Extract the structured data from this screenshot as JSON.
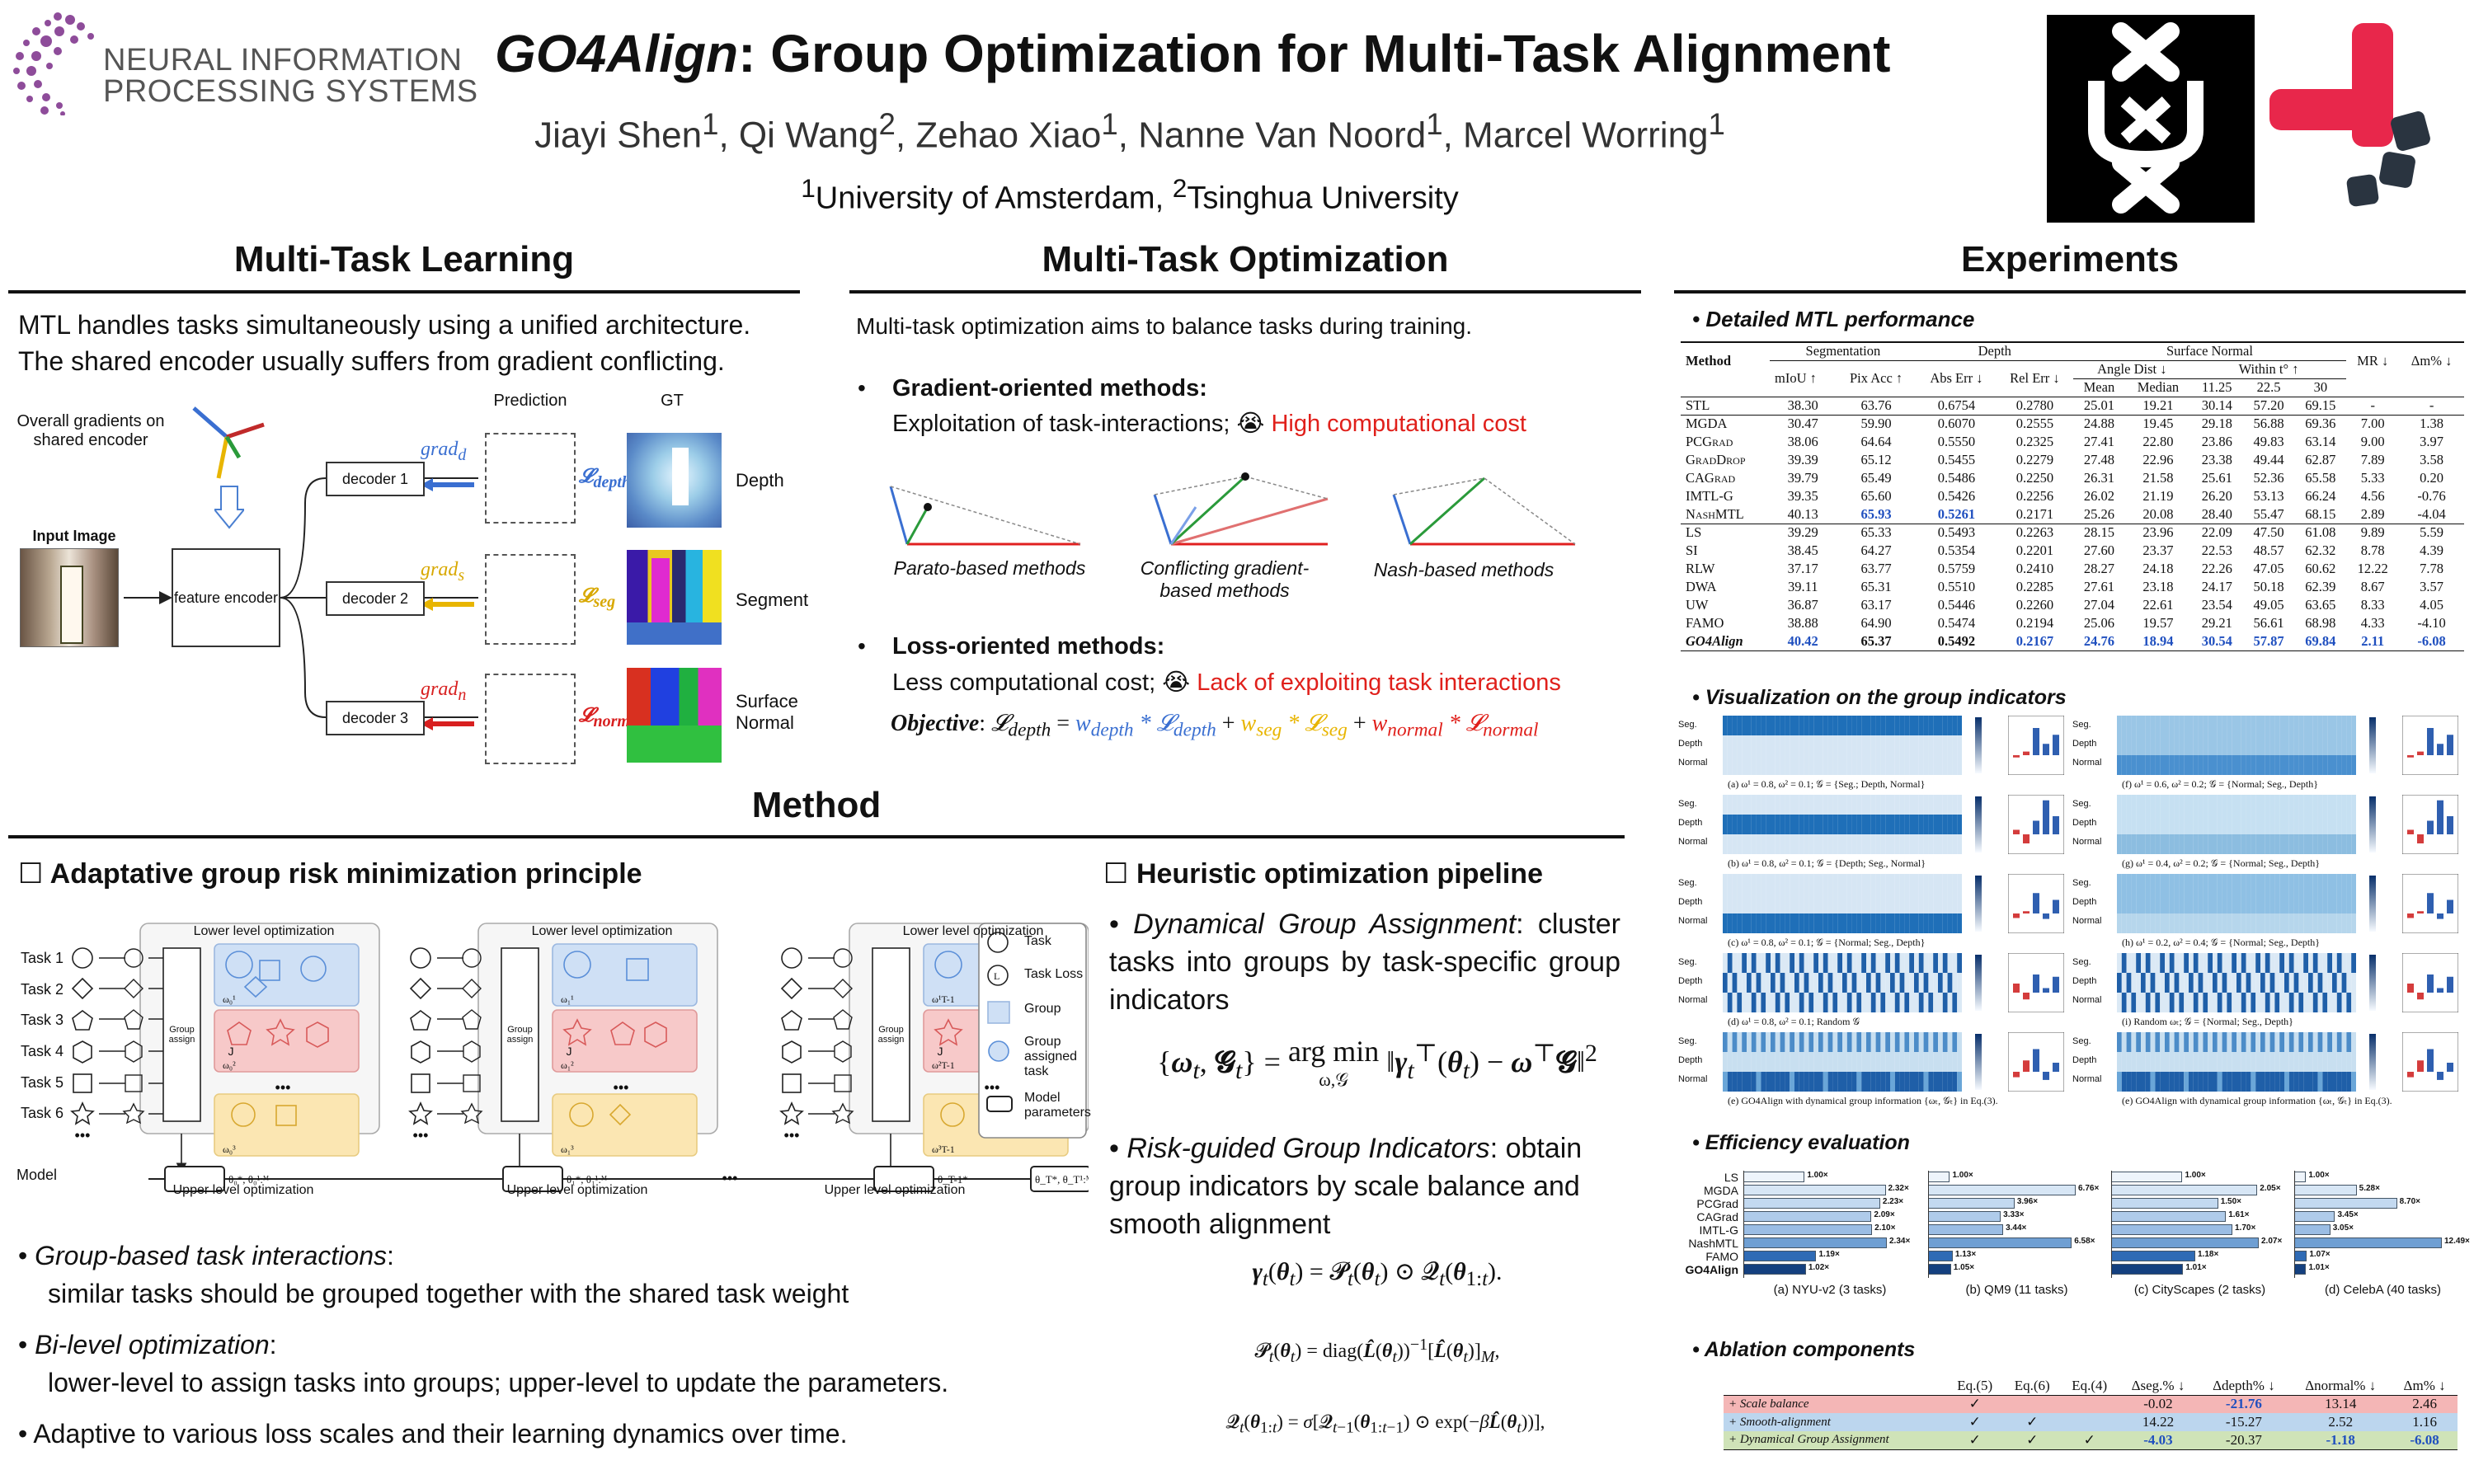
{
  "header": {
    "title_main": "GO4Align",
    "title_rest": ": Group Optimization for Multi-Task Alignment",
    "authors": [
      {
        "name": "Jiayi Shen",
        "aff": "1"
      },
      {
        "name": "Qi Wang",
        "aff": "2"
      },
      {
        "name": "Zehao Xiao",
        "aff": "1"
      },
      {
        "name": "Nanne Van Noord",
        "aff": "1"
      },
      {
        "name": "Marcel Worring",
        "aff": "1"
      }
    ],
    "affiliations": [
      "University of Amsterdam",
      "Tsinghua University"
    ],
    "conf_name_1": "NEURAL INFORMATION",
    "conf_name_2": "PROCESSING SYSTEMS"
  },
  "mtl": {
    "heading": "Multi-Task Learning",
    "text": "MTL handles tasks simultaneously using a unified architecture. The shared encoder usually suffers from gradient conflicting.",
    "overall_label": "Overall gradients on shared encoder",
    "input_label": "Input Image",
    "encoder_label": "feature encoder",
    "pred_label": "Prediction",
    "gt_label": "GT",
    "decoders": [
      "decoder 1",
      "decoder 2",
      "decoder 3"
    ],
    "grads": [
      "grad",
      "grad",
      "grad"
    ],
    "grad_subs": [
      "d",
      "s",
      "n"
    ],
    "losses": [
      "depth",
      "seg",
      "norm"
    ],
    "tasks": [
      "Depth",
      "Segment",
      "Surface Normal"
    ]
  },
  "mto": {
    "heading": "Multi-Task Optimization",
    "intro": "Multi-task optimization aims to balance tasks during training.",
    "grad_title": "Gradient-oriented methods:",
    "grad_desc": "Exploitation of task-interactions;",
    "grad_con": "High computational cost",
    "methods": [
      "Parato-based methods",
      "Conflicting gradient-based methods",
      "Nash-based methods"
    ],
    "loss_title": "Loss-oriented methods:",
    "loss_desc": "Less computational cost;",
    "loss_con": "Lack of exploiting task interactions",
    "objective_label": "Objective",
    "emoji": "😭"
  },
  "method": {
    "heading": "Method",
    "left_title": "Adaptative group risk minimization principle",
    "right_title": "Heuristic optimization pipeline",
    "lower_label": "Lower level optimization",
    "upper_label": "Upper level optimization",
    "group_assign": "Group assign",
    "model_label": "Model",
    "tasks": [
      "Task 1",
      "Task 2",
      "Task 3",
      "Task 4",
      "Task 5",
      "Task 6"
    ],
    "legend": [
      "Task",
      "Task Loss",
      "Group",
      "Group assigned task",
      "Model parameters"
    ],
    "bullets": [
      {
        "t": "Group-based task interactions",
        "d": "similar tasks should be grouped together with the shared task weight"
      },
      {
        "t": "Bi-level optimization",
        "d": "lower-level to assign tasks into groups; upper-level to update the parameters."
      },
      {
        "t": "",
        "d": "Adaptive to various loss scales and their learning dynamics over time."
      }
    ],
    "pipe1_t": "Dynamical Group Assignment",
    "pipe1_d": ": cluster tasks into groups by task-specific group indicators",
    "pipe2_t": "Risk-guided Group Indicators",
    "pipe2_d": ": obtain group indicators by scale balance and smooth alignment",
    "eq_argmin": "arg min",
    "eq_sub": "ω,𝒢"
  },
  "exp": {
    "heading": "Experiments",
    "s1": "Detailed MTL performance",
    "s2": "Visualization on the group indicators",
    "s3": "Efficiency evaluation",
    "s4": "Ablation components",
    "table_groups": [
      "Segmentation",
      "Depth",
      "Surface Normal"
    ],
    "table_sub": [
      "Angle Dist ↓",
      "Within t° ↑"
    ],
    "table_cols": [
      "Method",
      "mIoU ↑",
      "Pix Acc ↑",
      "Abs Err ↓",
      "Rel Err ↓",
      "Mean",
      "Median",
      "11.25",
      "22.5",
      "30",
      "MR ↓",
      "Δm% ↓"
    ],
    "rows_a": [
      [
        "STL",
        "38.30",
        "63.76",
        "0.6754",
        "0.2780",
        "25.01",
        "19.21",
        "30.14",
        "57.20",
        "69.15",
        "-",
        "-"
      ]
    ],
    "rows_b": [
      [
        "MGDA",
        "30.47",
        "59.90",
        "0.6070",
        "0.2555",
        "24.88",
        "19.45",
        "29.18",
        "56.88",
        "69.36",
        "7.00",
        "1.38"
      ],
      [
        "PCGrad",
        "38.06",
        "64.64",
        "0.5550",
        "0.2325",
        "27.41",
        "22.80",
        "23.86",
        "49.83",
        "63.14",
        "9.00",
        "3.97"
      ],
      [
        "GradDrop",
        "39.39",
        "65.12",
        "0.5455",
        "0.2279",
        "27.48",
        "22.96",
        "23.38",
        "49.44",
        "62.87",
        "7.89",
        "3.58"
      ],
      [
        "CAGrad",
        "39.79",
        "65.49",
        "0.5486",
        "0.2250",
        "26.31",
        "21.58",
        "25.61",
        "52.36",
        "65.58",
        "5.33",
        "0.20"
      ],
      [
        "IMTL-G",
        "39.35",
        "65.60",
        "0.5426",
        "0.2256",
        "26.02",
        "21.19",
        "26.20",
        "53.13",
        "66.24",
        "4.56",
        "-0.76"
      ],
      [
        "NashMTL",
        "40.13",
        "65.93",
        "0.5261",
        "0.2171",
        "25.26",
        "20.08",
        "28.40",
        "55.47",
        "68.15",
        "2.89",
        "-4.04"
      ]
    ],
    "rows_c": [
      [
        "LS",
        "39.29",
        "65.33",
        "0.5493",
        "0.2263",
        "28.15",
        "23.96",
        "22.09",
        "47.50",
        "61.08",
        "9.89",
        "5.59"
      ],
      [
        "SI",
        "38.45",
        "64.27",
        "0.5354",
        "0.2201",
        "27.60",
        "23.37",
        "22.53",
        "48.57",
        "62.32",
        "8.78",
        "4.39"
      ],
      [
        "RLW",
        "37.17",
        "63.77",
        "0.5759",
        "0.2410",
        "28.27",
        "24.18",
        "22.26",
        "47.05",
        "60.62",
        "12.22",
        "7.78"
      ],
      [
        "DWA",
        "39.11",
        "65.31",
        "0.5510",
        "0.2285",
        "27.61",
        "23.18",
        "24.17",
        "50.18",
        "62.39",
        "8.67",
        "3.57"
      ],
      [
        "UW",
        "36.87",
        "63.17",
        "0.5446",
        "0.2260",
        "27.04",
        "22.61",
        "23.54",
        "49.05",
        "63.65",
        "8.33",
        "4.05"
      ],
      [
        "FAMO",
        "38.88",
        "64.90",
        "0.5474",
        "0.2194",
        "25.06",
        "19.57",
        "29.21",
        "56.61",
        "68.98",
        "4.33",
        "-4.10"
      ],
      [
        "GO4Align",
        "40.42",
        "65.37",
        "0.5492",
        "0.2167",
        "24.76",
        "18.94",
        "30.54",
        "57.87",
        "69.84",
        "2.11",
        "-6.08"
      ]
    ],
    "vis_rows": [
      "Seg.",
      "Depth",
      "Normal"
    ],
    "vis_caps_left": [
      "(a) ω¹ = 0.8, ω² = 0.1; 𝒢 = {Seg.; Depth, Normal}",
      "(b) ω¹ = 0.8, ω² = 0.1; 𝒢 = {Depth; Seg., Normal}",
      "(c) ω¹ = 0.8, ω² = 0.1; 𝒢 = {Normal; Seg., Depth}",
      "(d) ω¹ = 0.8, ω² = 0.1; Random 𝒢",
      "(e) GO4Align with dynamical group information {ωₜ, 𝒢ₜ} in Eq.(3)."
    ],
    "vis_caps_right": [
      "(f) ω¹ = 0.6, ω² = 0.2; 𝒢 = {Normal; Seg., Depth}",
      "(g) ω¹ = 0.4, ω² = 0.2; 𝒢 = {Normal; Seg., Depth}",
      "(h) ω¹ = 0.2, ω² = 0.4; 𝒢 = {Normal; Seg., Depth}",
      "(i) Random ωₜ; 𝒢 = {Normal; Seg., Depth}",
      "(e) GO4Align with dynamical group information {ωₜ, 𝒢ₜ} in Eq.(3)."
    ],
    "eff_methods": [
      "LS",
      "MGDA",
      "PCGrad",
      "CAGrad",
      "IMTL-G",
      "NashMTL",
      "FAMO",
      "GO4Align"
    ],
    "eff_charts": [
      {
        "caption": "(a) NYU-v2 (3 tasks)",
        "values": [
          1.0,
          2.32,
          2.23,
          2.09,
          2.1,
          2.34,
          1.19,
          1.02
        ],
        "labels": [
          "1.00×",
          "2.32×",
          "2.23×",
          "2.09×",
          "2.10×",
          "2.34×",
          "1.19×",
          "1.02×"
        ]
      },
      {
        "caption": "(b) QM9 (11 tasks)",
        "values": [
          1.0,
          6.76,
          3.96,
          3.33,
          3.44,
          6.58,
          1.13,
          1.05
        ],
        "labels": [
          "1.00×",
          "6.76×",
          "3.96×",
          "3.33×",
          "3.44×",
          "6.58×",
          "1.13×",
          "1.05×"
        ]
      },
      {
        "caption": "(c) CityScapes (2 tasks)",
        "values": [
          1.0,
          2.05,
          1.5,
          1.61,
          1.7,
          2.07,
          1.18,
          1.01
        ],
        "labels": [
          "1.00×",
          "2.05×",
          "1.50×",
          "1.61×",
          "1.70×",
          "2.07×",
          "1.18×",
          "1.01×"
        ]
      },
      {
        "caption": "(d) CelebA (40 tasks)",
        "values": [
          1.0,
          5.28,
          8.7,
          3.45,
          3.05,
          12.49,
          1.07,
          1.01
        ],
        "labels": [
          "1.00×",
          "5.28×",
          "8.70×",
          "3.45×",
          "3.05×",
          "12.49×",
          "1.07×",
          "1.01×"
        ]
      }
    ],
    "abl_cols": [
      "Eq.(5)",
      "Eq.(6)",
      "Eq.(4)",
      "Δseg.% ↓",
      "Δdepth% ↓",
      "Δnormal% ↓",
      "Δm% ↓"
    ],
    "abl_rows": [
      {
        "name": "+ Scale balance",
        "checks": [
          "✓",
          "",
          ""
        ],
        "vals": [
          "-0.02",
          "-21.76",
          "13.14",
          "2.46"
        ],
        "bg": "#f4b6b6"
      },
      {
        "name": "+ Smooth-alignment",
        "checks": [
          "✓",
          "✓",
          ""
        ],
        "vals": [
          "14.22",
          "-15.27",
          "2.52",
          "1.16"
        ],
        "bg": "#bcd6ee"
      },
      {
        "name": "+ Dynamical Group Assignment",
        "checks": [
          "✓",
          "✓",
          "✓"
        ],
        "vals": [
          "-4.03",
          "-20.37",
          "-1.18",
          "-6.08"
        ],
        "bg": "#cfe3b8"
      }
    ]
  },
  "colors": {
    "accent_blue": "#1f4fbf",
    "red": "#e0201b",
    "uva_black": "#000000",
    "tsinghua_red": "#e8274b",
    "neurips_purple": "#8e4c9a"
  }
}
